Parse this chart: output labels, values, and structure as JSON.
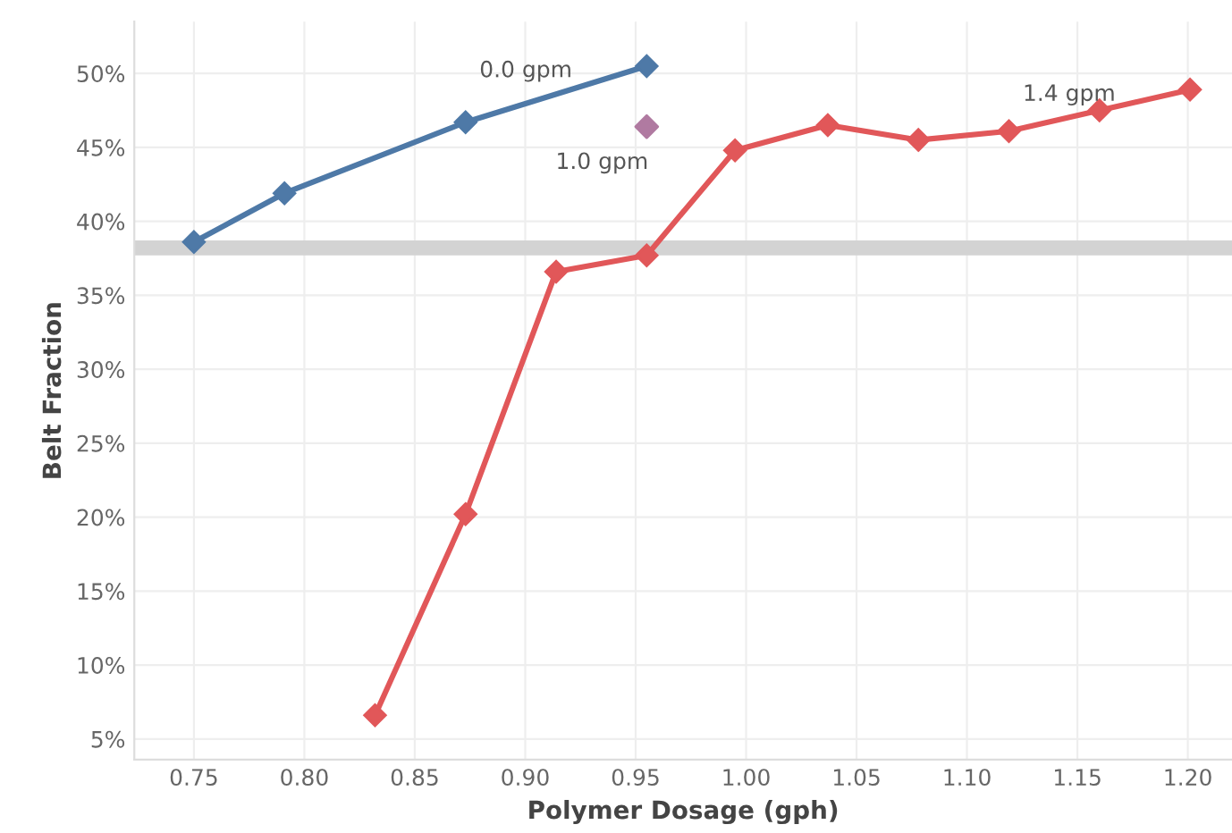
{
  "chart_data": {
    "type": "line",
    "xlabel": "Polymer Dosage (gph)",
    "ylabel": "Belt Fraction",
    "xlim": [
      0.723,
      1.22
    ],
    "ylim": [
      3.6,
      53.5
    ],
    "xticks": [
      {
        "value": 0.75,
        "label": "0.75"
      },
      {
        "value": 0.8,
        "label": "0.80"
      },
      {
        "value": 0.85,
        "label": "0.85"
      },
      {
        "value": 0.9,
        "label": "0.90"
      },
      {
        "value": 0.95,
        "label": "0.95"
      },
      {
        "value": 1.0,
        "label": "1.00"
      },
      {
        "value": 1.05,
        "label": "1.05"
      },
      {
        "value": 1.1,
        "label": "1.10"
      },
      {
        "value": 1.15,
        "label": "1.15"
      },
      {
        "value": 1.2,
        "label": "1.20"
      }
    ],
    "yticks": [
      {
        "value": 5,
        "label": "5%"
      },
      {
        "value": 10,
        "label": "10%"
      },
      {
        "value": 15,
        "label": "15%"
      },
      {
        "value": 20,
        "label": "20%"
      },
      {
        "value": 25,
        "label": "25%"
      },
      {
        "value": 30,
        "label": "30%"
      },
      {
        "value": 35,
        "label": "35%"
      },
      {
        "value": 40,
        "label": "40%"
      },
      {
        "value": 45,
        "label": "45%"
      },
      {
        "value": 50,
        "label": "50%"
      }
    ],
    "grid": true,
    "marker": "diamond",
    "line_style": "solid",
    "ref_lines": [
      {
        "axis": "y",
        "value": 38.2,
        "color": "#d3d3d3"
      }
    ],
    "series": [
      {
        "name": "0.0 gpm",
        "color": "#4e79a7",
        "x": [
          0.75,
          0.791,
          0.873,
          0.955
        ],
        "values": [
          38.6,
          41.9,
          46.7,
          50.5
        ]
      },
      {
        "name": "1.0 gpm",
        "color": "#b07aa1",
        "type": "scatter",
        "x": [
          0.955
        ],
        "values": [
          46.4
        ]
      },
      {
        "name": "1.4 gpm",
        "color": "#e15759",
        "x": [
          0.832,
          0.873,
          0.914,
          0.955,
          0.995,
          1.037,
          1.078,
          1.119,
          1.16,
          1.201
        ],
        "values": [
          6.6,
          20.2,
          36.6,
          37.7,
          44.8,
          46.5,
          45.5,
          46.1,
          47.5,
          48.9
        ]
      }
    ]
  }
}
